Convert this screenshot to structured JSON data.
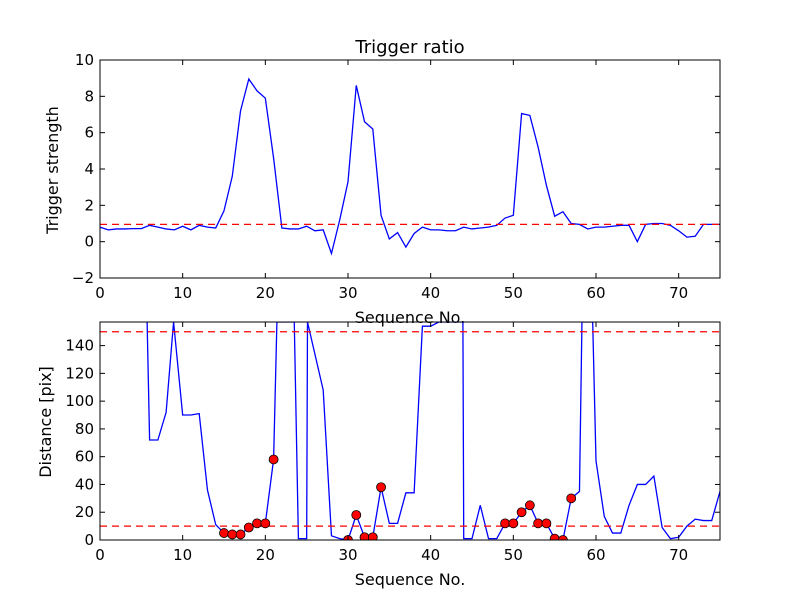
{
  "figure": {
    "background": "#ffffff"
  },
  "chart_data": [
    {
      "type": "line",
      "title": "Trigger ratio",
      "xlabel": "Sequence No.",
      "ylabel": "Trigger strength",
      "xlim": [
        0,
        75
      ],
      "ylim": [
        -2,
        10
      ],
      "xticks": [
        0,
        10,
        20,
        30,
        40,
        50,
        60,
        70
      ],
      "yticks": [
        -2,
        0,
        2,
        4,
        6,
        8,
        10
      ],
      "grid": false,
      "series": [
        {
          "color": "#0000ff",
          "style": "solid",
          "x": [
            0,
            1,
            2,
            3,
            4,
            5,
            6,
            7,
            8,
            9,
            10,
            11,
            12,
            13,
            14,
            15,
            16,
            17,
            18,
            19,
            20,
            21,
            22,
            23,
            24,
            25,
            26,
            27,
            28,
            29,
            30,
            31,
            32,
            33,
            34,
            35,
            36,
            37,
            38,
            39,
            40,
            41,
            42,
            43,
            44,
            45,
            46,
            47,
            48,
            49,
            50,
            51,
            52,
            53,
            54,
            55,
            56,
            57,
            58,
            59,
            60,
            61,
            62,
            63,
            64,
            65,
            66,
            67,
            68,
            69,
            70,
            71,
            72,
            73,
            74,
            75
          ],
          "y": [
            0.8,
            0.65,
            0.7,
            0.7,
            0.72,
            0.72,
            0.9,
            0.8,
            0.7,
            0.65,
            0.85,
            0.65,
            0.9,
            0.8,
            0.75,
            1.7,
            3.6,
            7.2,
            8.95,
            8.3,
            7.9,
            4.6,
            0.75,
            0.7,
            0.7,
            0.85,
            0.6,
            0.65,
            -0.65,
            1.2,
            3.3,
            8.6,
            6.6,
            6.2,
            1.45,
            0.15,
            0.5,
            -0.3,
            0.45,
            0.8,
            0.65,
            0.65,
            0.6,
            0.6,
            0.8,
            0.7,
            0.75,
            0.8,
            0.9,
            1.3,
            1.45,
            7.05,
            6.95,
            5.2,
            3.1,
            1.4,
            1.65,
            1.0,
            0.95,
            0.7,
            0.8,
            0.8,
            0.85,
            0.9,
            0.9,
            0.0,
            0.95,
            1.0,
            1.0,
            0.9,
            0.6,
            0.25,
            0.3,
            0.95,
            0.95,
            0.95
          ]
        },
        {
          "color": "#ff0000",
          "style": "dashed",
          "x": [
            0,
            75
          ],
          "y": [
            0.95,
            0.95
          ]
        }
      ]
    },
    {
      "type": "line",
      "title": "",
      "xlabel": "Sequence No.",
      "ylabel": "Distance [pix]",
      "xlim": [
        0,
        75
      ],
      "ylim": [
        0,
        157
      ],
      "xticks": [
        0,
        10,
        20,
        30,
        40,
        50,
        60,
        70
      ],
      "yticks": [
        0,
        20,
        40,
        60,
        80,
        100,
        120,
        140
      ],
      "grid": false,
      "series": [
        {
          "color": "#0000ff",
          "style": "solid",
          "x": [
            5.7,
            6,
            7,
            8,
            8.9,
            10,
            11,
            12,
            13,
            14,
            15,
            16,
            17,
            18,
            19,
            20,
            21,
            21.4,
            23.5,
            24,
            25,
            25.1,
            27,
            28,
            29,
            30,
            31,
            32,
            33,
            34,
            35,
            36,
            37,
            38,
            39,
            40,
            41,
            41.1,
            43.9,
            44,
            45,
            46,
            47,
            48,
            49,
            50,
            51,
            52,
            53,
            54,
            55,
            56,
            57,
            58,
            58.3,
            59.6,
            60,
            61,
            62,
            63,
            64,
            65,
            66,
            67,
            68,
            69,
            70,
            71,
            72,
            73,
            74,
            75
          ],
          "y": [
            157,
            72,
            72,
            92,
            157,
            90,
            90,
            91,
            36,
            11,
            5,
            4,
            4,
            9,
            12,
            12,
            58,
            157,
            157,
            1,
            1,
            157,
            108,
            3,
            1,
            0,
            18,
            2,
            2,
            38,
            12,
            12,
            34,
            34,
            154,
            154,
            157,
            157,
            157,
            1,
            1,
            25,
            1,
            1,
            12,
            12,
            20,
            25,
            12,
            12,
            1,
            0,
            30,
            35,
            157,
            157,
            57,
            17,
            5,
            5,
            25,
            40,
            40,
            46,
            9,
            1,
            2,
            10,
            15,
            14,
            14,
            35
          ]
        },
        {
          "color": "#ff0000",
          "style": "dashed",
          "x": [
            0,
            75
          ],
          "y": [
            150,
            150
          ]
        },
        {
          "color": "#ff0000",
          "style": "dashed",
          "x": [
            0,
            75
          ],
          "y": [
            10,
            10
          ]
        },
        {
          "color": "#ff0000",
          "style": "markers",
          "x": [
            15,
            16,
            17,
            18,
            19,
            20,
            21,
            30,
            31,
            32,
            33,
            34,
            49,
            50,
            51,
            52,
            53,
            54,
            55,
            56,
            57
          ],
          "y": [
            5,
            4,
            4,
            9,
            12,
            12,
            58,
            0,
            18,
            2,
            2,
            38,
            12,
            12,
            20,
            25,
            12,
            12,
            1,
            0,
            30
          ]
        }
      ]
    }
  ]
}
